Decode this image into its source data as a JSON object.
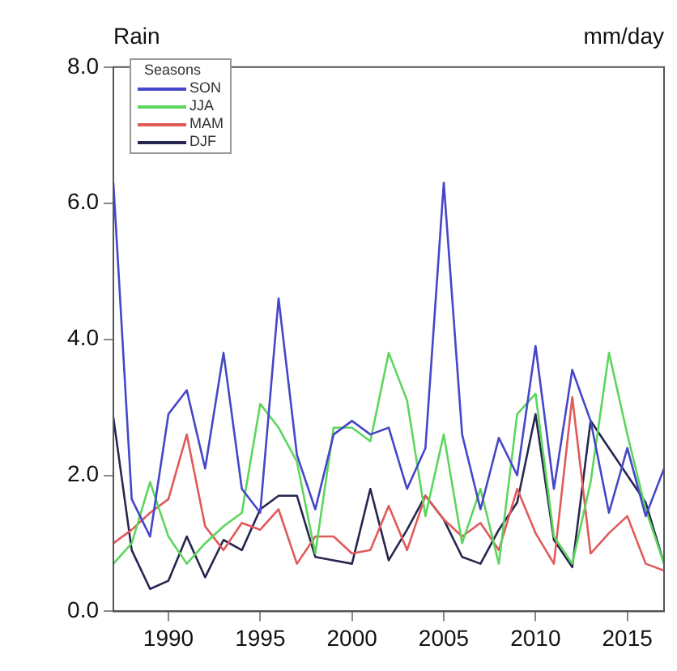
{
  "chart_data": {
    "type": "line",
    "title": "Rain",
    "annotations": [
      "mm/day"
    ],
    "legend_title": "Seasons",
    "legend": "top left",
    "grid": false,
    "marker": "none",
    "line_style": "solid",
    "x": [
      1987,
      1988,
      1989,
      1990,
      1991,
      1992,
      1993,
      1994,
      1995,
      1996,
      1997,
      1998,
      1999,
      2000,
      2001,
      2002,
      2003,
      2004,
      2005,
      2006,
      2007,
      2008,
      2009,
      2010,
      2011,
      2012,
      2013,
      2014,
      2015,
      2016,
      2017
    ],
    "xlim": [
      1987,
      2017
    ],
    "xticks": [
      1990,
      1995,
      2000,
      2005,
      2010,
      2015
    ],
    "ylim": [
      0,
      8
    ],
    "yticks": [
      {
        "value": 0,
        "label": "0.0"
      },
      {
        "value": 2,
        "label": "2.0"
      },
      {
        "value": 4,
        "label": "4.0"
      },
      {
        "value": 6,
        "label": "6.0"
      },
      {
        "value": 8,
        "label": "8.0"
      }
    ],
    "series": [
      {
        "name": "SON",
        "color": "#4646c8",
        "values": [
          6.3,
          1.65,
          1.1,
          2.9,
          3.25,
          2.1,
          3.8,
          1.8,
          1.45,
          4.6,
          2.3,
          1.5,
          2.6,
          2.8,
          2.6,
          2.7,
          1.8,
          2.4,
          6.3,
          2.6,
          1.5,
          2.55,
          2.0,
          3.9,
          1.8,
          3.55,
          2.8,
          1.45,
          2.4,
          1.4,
          2.1
        ]
      },
      {
        "name": "JJA",
        "color": "#5cd65c",
        "values": [
          0.7,
          1.0,
          1.9,
          1.1,
          0.7,
          1.0,
          1.25,
          1.45,
          3.05,
          2.7,
          2.2,
          0.85,
          2.7,
          2.7,
          2.5,
          3.8,
          3.1,
          1.4,
          2.6,
          1.0,
          1.8,
          0.7,
          2.9,
          3.2,
          1.1,
          0.7,
          1.9,
          3.8,
          2.6,
          1.5,
          0.7
        ]
      },
      {
        "name": "MAM",
        "color": "#e05a5a",
        "values": [
          1.0,
          1.2,
          1.45,
          1.65,
          2.6,
          1.25,
          0.9,
          1.3,
          1.2,
          1.5,
          0.7,
          1.1,
          1.1,
          0.85,
          0.9,
          1.55,
          0.9,
          1.7,
          1.35,
          1.1,
          1.3,
          0.9,
          1.8,
          1.15,
          0.7,
          3.15,
          0.85,
          1.15,
          1.4,
          0.7,
          0.6
        ]
      },
      {
        "name": "DJF",
        "color": "#262650",
        "values": [
          2.85,
          0.9,
          0.33,
          0.45,
          1.1,
          0.5,
          1.05,
          0.9,
          1.5,
          1.7,
          1.7,
          0.8,
          0.75,
          0.7,
          1.8,
          0.75,
          1.2,
          1.7,
          1.35,
          0.8,
          0.7,
          1.2,
          1.6,
          2.9,
          1.05,
          0.65,
          2.8,
          2.4,
          2.0,
          1.6,
          0.7
        ]
      }
    ]
  }
}
